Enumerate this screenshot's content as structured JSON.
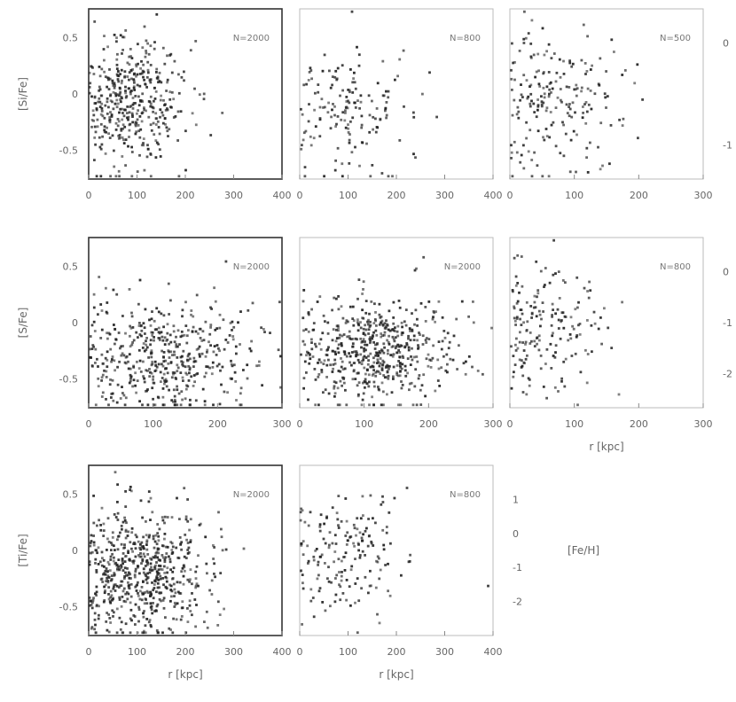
{
  "figure": {
    "right_axis_label": "[Fe/H]",
    "left_axis_labels": [
      "[Si/Fe]",
      "[S/Fe]",
      "[Ti/Fe]"
    ]
  },
  "chart_data": [
    {
      "type": "scatter",
      "row": 0,
      "col": 0,
      "annotation": "N=2000",
      "xlim": [
        0,
        400
      ],
      "ylim": [
        -0.5,
        0.7
      ],
      "xticks": [
        "0",
        "100",
        "200",
        "300",
        "400"
      ],
      "yticks": [
        "0.5",
        "0",
        "-0.5"
      ],
      "ylabel": "[Si/Fe]",
      "xlabel": "",
      "series": [
        {
          "n": 420,
          "x_center": 80,
          "x_spread": 60,
          "y_center": 0.05,
          "y_spread": 0.22
        }
      ]
    },
    {
      "type": "scatter",
      "row": 0,
      "col": 1,
      "annotation": "N=800",
      "xlim": [
        0,
        400
      ],
      "ylim": [
        -0.5,
        0.7
      ],
      "xticks": [
        "0",
        "100",
        "200",
        "300",
        "400"
      ],
      "yticks": [],
      "ylabel": "",
      "xlabel": "",
      "series": [
        {
          "n": 160,
          "x_center": 90,
          "x_spread": 70,
          "y_center": 0.0,
          "y_spread": 0.22
        }
      ]
    },
    {
      "type": "scatter",
      "row": 0,
      "col": 2,
      "annotation": "N=500",
      "xlim": [
        0,
        300
      ],
      "ylim": [
        -0.5,
        0.7
      ],
      "xticks": [
        "0",
        "100",
        "200",
        "300"
      ],
      "yticks": [],
      "ylabel": "",
      "xlabel": "",
      "right_yticks": [
        "0",
        "-1"
      ],
      "series": [
        {
          "n": 200,
          "x_center": 70,
          "x_spread": 60,
          "y_center": 0.05,
          "y_spread": 0.25
        }
      ]
    },
    {
      "type": "scatter",
      "row": 1,
      "col": 0,
      "annotation": "N=2000",
      "xlim": [
        0,
        300
      ],
      "ylim": [
        -0.5,
        0.7
      ],
      "xticks": [
        "0",
        "100",
        "200",
        "300"
      ],
      "yticks": [
        "0.5",
        "0",
        "-0.5"
      ],
      "ylabel": "[S/Fe]",
      "xlabel": "",
      "series": [
        {
          "n": 480,
          "x_center": 120,
          "x_spread": 70,
          "y_center": -0.15,
          "y_spread": 0.2
        }
      ]
    },
    {
      "type": "scatter",
      "row": 1,
      "col": 1,
      "annotation": "N=2000",
      "xlim": [
        0,
        300
      ],
      "ylim": [
        -0.5,
        0.7
      ],
      "xticks": [
        "0",
        "100",
        "200",
        "300"
      ],
      "yticks": [],
      "ylabel": "",
      "xlabel": "",
      "series": [
        {
          "n": 560,
          "x_center": 120,
          "x_spread": 60,
          "y_center": -0.1,
          "y_spread": 0.2
        }
      ]
    },
    {
      "type": "scatter",
      "row": 1,
      "col": 2,
      "annotation": "N=800",
      "xlim": [
        0,
        300
      ],
      "ylim": [
        -0.5,
        0.7
      ],
      "xticks": [
        "0",
        "100",
        "200",
        "300"
      ],
      "yticks": [],
      "ylabel": "",
      "xlabel": "r [kpc]",
      "right_yticks": [
        "0",
        "-1",
        "-2"
      ],
      "series": [
        {
          "n": 180,
          "x_center": 50,
          "x_spread": 50,
          "y_center": 0.05,
          "y_spread": 0.22
        }
      ]
    },
    {
      "type": "scatter",
      "row": 2,
      "col": 0,
      "annotation": "N=2000",
      "xlim": [
        0,
        400
      ],
      "ylim": [
        -0.5,
        0.7
      ],
      "xticks": [
        "0",
        "100",
        "200",
        "300",
        "400"
      ],
      "yticks": [
        "0.5",
        "0",
        "-0.5"
      ],
      "ylabel": "[Ti/Fe]",
      "xlabel": "r [kpc]",
      "series": [
        {
          "n": 620,
          "x_center": 110,
          "x_spread": 70,
          "y_center": -0.05,
          "y_spread": 0.22
        }
      ]
    },
    {
      "type": "scatter",
      "row": 2,
      "col": 1,
      "annotation": "N=800",
      "xlim": [
        0,
        400
      ],
      "ylim": [
        -0.5,
        0.7
      ],
      "xticks": [
        "0",
        "100",
        "200",
        "300",
        "400"
      ],
      "yticks": [],
      "ylabel": "",
      "xlabel": "r [kpc]",
      "right_yticks": [
        "1",
        "0",
        "-1",
        "-2"
      ],
      "series": [
        {
          "n": 180,
          "x_center": 90,
          "x_spread": 70,
          "y_center": 0.05,
          "y_spread": 0.22
        }
      ]
    }
  ]
}
